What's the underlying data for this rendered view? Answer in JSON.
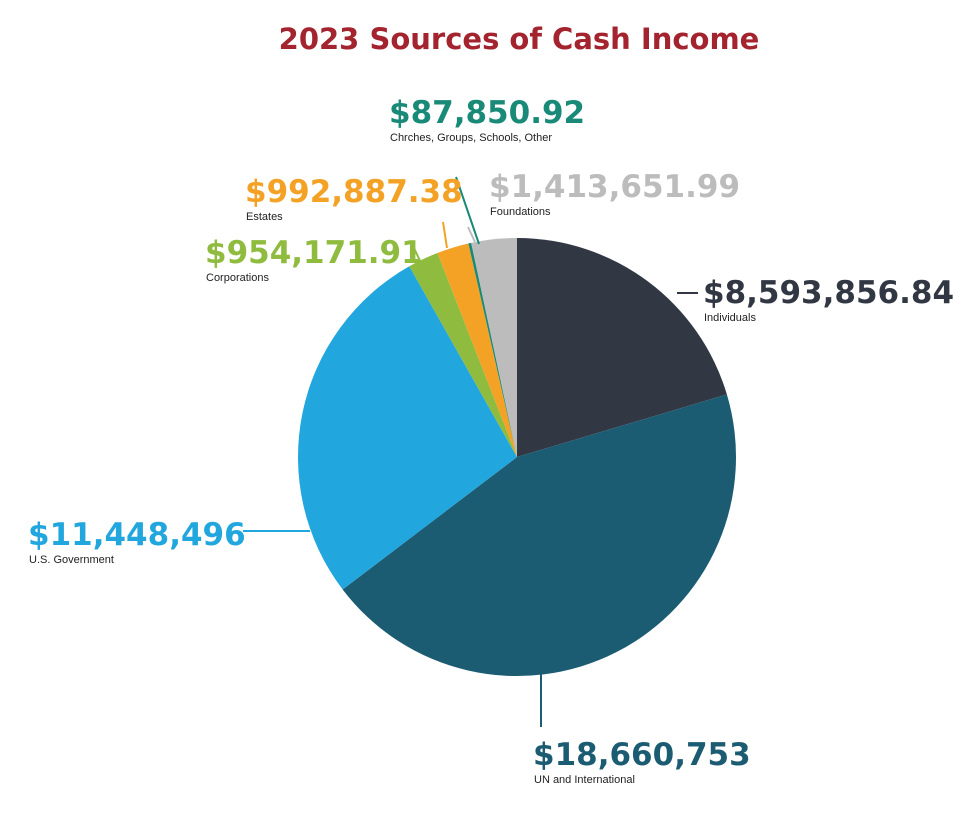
{
  "chart_data": {
    "type": "pie",
    "title": "2023 Sources of Cash Income",
    "title_color": "#a3232e",
    "slices": [
      {
        "label": "Individuals",
        "value_text": "$8,593,856.84",
        "value": 8593856.84,
        "color": "#323843"
      },
      {
        "label": "UN and International",
        "value_text": "$18,660,753",
        "value": 18660753,
        "color": "#1c5c73"
      },
      {
        "label": "U.S. Government",
        "value_text": "$11,448,496",
        "value": 11448496,
        "color": "#22a6de"
      },
      {
        "label": "Corporations",
        "value_text": "$954,171.91",
        "value": 954171.91,
        "color": "#8fbb3f"
      },
      {
        "label": "Estates",
        "value_text": "$992,887.38",
        "value": 992887.38,
        "color": "#f4a226"
      },
      {
        "label": "Chrches, Groups, Schools, Other",
        "value_text": "$87,850.92",
        "value": 87850.92,
        "color": "#198a78"
      },
      {
        "label": "Foundations",
        "value_text": "$1,413,651.99",
        "value": 1413651.99,
        "color": "#bcbcbc"
      }
    ]
  }
}
